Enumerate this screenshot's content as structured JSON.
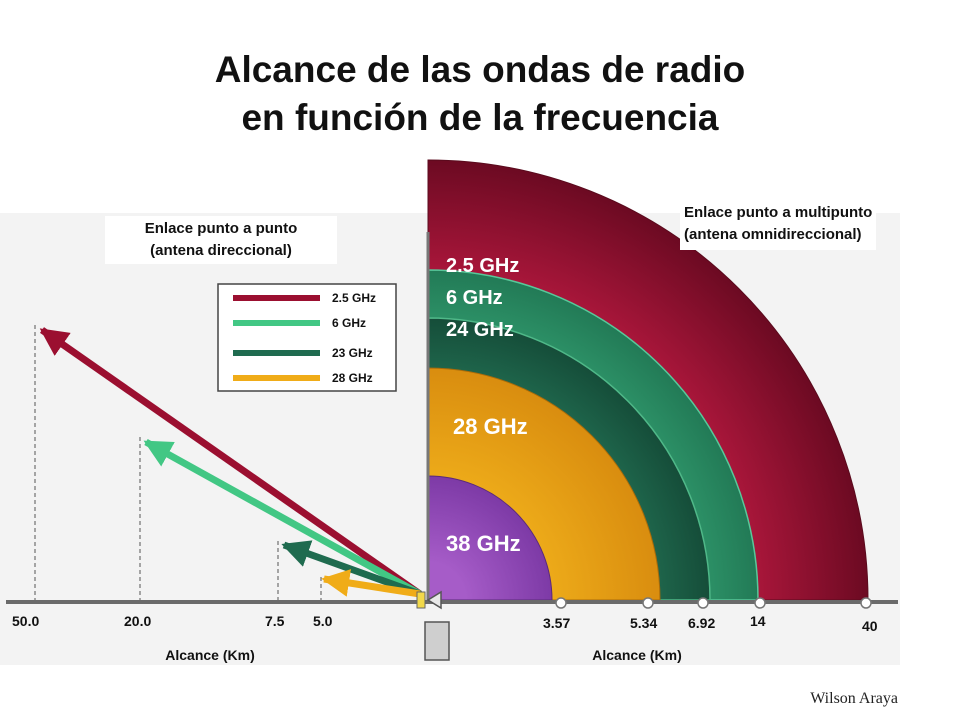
{
  "title": {
    "line1": "Alcance de las ondas de radio",
    "line2": "en función de la frecuencia"
  },
  "left_panel": {
    "heading_line1": "Enlace punto a punto",
    "heading_line2": "(antena direccional)",
    "legend": [
      {
        "label": "2.5 GHz",
        "color": "#9b0f30"
      },
      {
        "label": "6 GHz",
        "color": "#42c784"
      },
      {
        "label": "23 GHz",
        "color": "#1f6b4f"
      },
      {
        "label": "28 GHz",
        "color": "#f0ac18"
      }
    ],
    "axis_label": "Alcance (Km)",
    "tick_labels": [
      "50.0",
      "20.0",
      "7.5",
      "5.0"
    ]
  },
  "right_panel": {
    "heading_line1": "Enlace punto a multipunto",
    "heading_line2": "(antena omnidireccional)",
    "bands": [
      {
        "label": "2.5 GHz",
        "color": "#9b0f30"
      },
      {
        "label": "6 GHz",
        "color": "#2e9c6c"
      },
      {
        "label": "24 GHz",
        "color": "#1f6b4f"
      },
      {
        "label": "28 GHz",
        "color": "#f0ae18"
      },
      {
        "label": "38 GHz",
        "color": "#9a4fc0"
      }
    ],
    "axis_label": "Alcance (Km)",
    "tick_labels": [
      "3.57",
      "5.34",
      "6.92",
      "14",
      "40"
    ]
  },
  "author": "Wilson Araya"
}
